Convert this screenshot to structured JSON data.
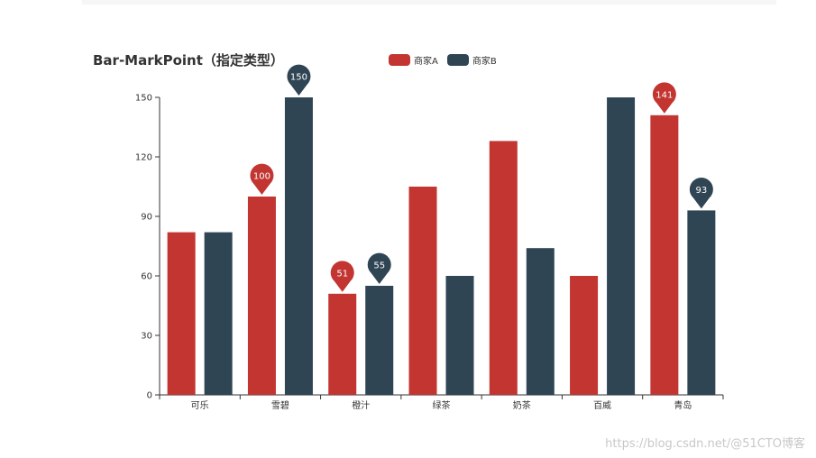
{
  "chart_data": {
    "type": "bar",
    "title": "Bar-MarkPoint（指定类型）",
    "categories": [
      "可乐",
      "雪碧",
      "橙汁",
      "绿茶",
      "奶茶",
      "百威",
      "青岛"
    ],
    "series": [
      {
        "name": "商家A",
        "color": "#c23531",
        "values": [
          82,
          100,
          51,
          105,
          128,
          60,
          141
        ]
      },
      {
        "name": "商家B",
        "color": "#2f4554",
        "values": [
          82,
          150,
          55,
          60,
          74,
          150,
          93
        ]
      }
    ],
    "ylim": [
      0,
      150
    ],
    "yticks": [
      "0",
      "30",
      "60",
      "90",
      "120",
      "150"
    ],
    "mark_points": [
      {
        "series": 0,
        "category": 1,
        "label": "100"
      },
      {
        "series": 0,
        "category": 2,
        "label": "51"
      },
      {
        "series": 0,
        "category": 6,
        "label": "141"
      },
      {
        "series": 1,
        "category": 1,
        "label": "150"
      },
      {
        "series": 1,
        "category": 2,
        "label": "55"
      },
      {
        "series": 1,
        "category": 6,
        "label": "93"
      }
    ],
    "legend_position": "top-center",
    "xlabel": "",
    "ylabel": ""
  },
  "watermark": "https://blog.csdn.net/@51CTO博客"
}
